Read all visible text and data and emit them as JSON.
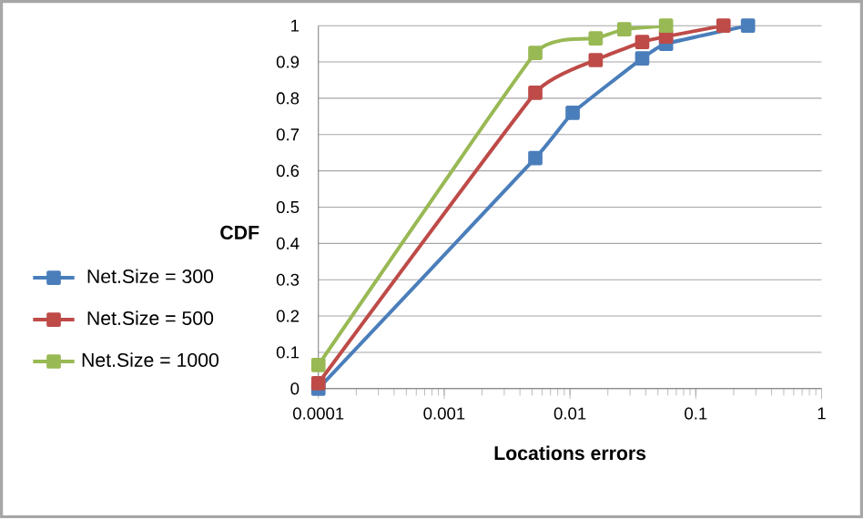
{
  "chart_data": {
    "type": "line",
    "xlabel": "Locations errors",
    "ylabel": "CDF",
    "log": "x",
    "xlim": [
      0.0001,
      1
    ],
    "xticks": [
      0.0001,
      0.001,
      0.01,
      0.1,
      1
    ],
    "ylim": [
      0,
      1
    ],
    "yticks": [
      0,
      0.1,
      0.2,
      0.3,
      0.4,
      0.5,
      0.6,
      0.7,
      0.8,
      0.9,
      1
    ],
    "grid": "y",
    "legend": "left",
    "marker": "square",
    "line_style": "solid",
    "series": [
      {
        "name": "Net.Size = 300",
        "color": "#4a7ebb",
        "x": [
          0.0001,
          0.0053,
          0.0105,
          0.0375,
          0.058,
          0.26
        ],
        "values": [
          0,
          0.635,
          0.76,
          0.91,
          0.95,
          1.0
        ]
      },
      {
        "name": "Net.Size = 500",
        "color": "#be4b48",
        "x": [
          0.0001,
          0.0053,
          0.016,
          0.0375,
          0.058,
          0.166
        ],
        "values": [
          0.015,
          0.815,
          0.905,
          0.955,
          0.97,
          1.0
        ]
      },
      {
        "name": "Net.Size = 1000",
        "color": "#98b954",
        "x": [
          0.0001,
          0.0053,
          0.016,
          0.027,
          0.058
        ],
        "values": [
          0.065,
          0.925,
          0.965,
          0.99,
          1.0
        ]
      }
    ]
  }
}
